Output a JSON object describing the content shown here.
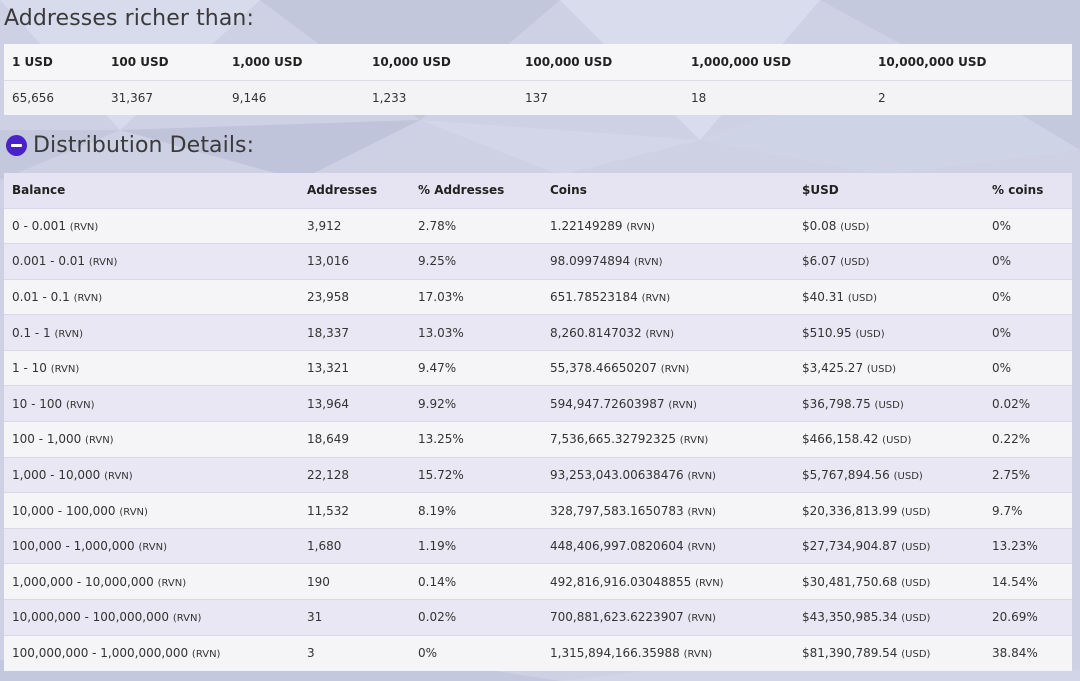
{
  "richer": {
    "title": "Addresses richer than:",
    "headers": [
      "1 USD",
      "100 USD",
      "1,000 USD",
      "10,000 USD",
      "100,000 USD",
      "1,000,000 USD",
      "10,000,000 USD"
    ],
    "values": [
      "65,656",
      "31,367",
      "9,146",
      "1,233",
      "137",
      "18",
      "2"
    ]
  },
  "distribution": {
    "title": "Distribution Details:",
    "toggle_icon": "minus-circle-icon",
    "accent_color": "#4a22c9",
    "headers": [
      "Balance",
      "Addresses",
      "% Addresses",
      "Coins",
      "$USD",
      "% coins"
    ],
    "rows": [
      {
        "balance": "0 - 0.001",
        "balance_unit": "(RVN)",
        "addresses": "3,912",
        "pct_addresses": "2.78%",
        "coins": "1.22149289",
        "coins_unit": "(RVN)",
        "usd": "$0.08",
        "usd_unit": "(USD)",
        "pct_coins": "0%"
      },
      {
        "balance": "0.001 - 0.01",
        "balance_unit": "(RVN)",
        "addresses": "13,016",
        "pct_addresses": "9.25%",
        "coins": "98.09974894",
        "coins_unit": "(RVN)",
        "usd": "$6.07",
        "usd_unit": "(USD)",
        "pct_coins": "0%"
      },
      {
        "balance": "0.01 - 0.1",
        "balance_unit": "(RVN)",
        "addresses": "23,958",
        "pct_addresses": "17.03%",
        "coins": "651.78523184",
        "coins_unit": "(RVN)",
        "usd": "$40.31",
        "usd_unit": "(USD)",
        "pct_coins": "0%"
      },
      {
        "balance": "0.1 - 1",
        "balance_unit": "(RVN)",
        "addresses": "18,337",
        "pct_addresses": "13.03%",
        "coins": "8,260.8147032",
        "coins_unit": "(RVN)",
        "usd": "$510.95",
        "usd_unit": "(USD)",
        "pct_coins": "0%"
      },
      {
        "balance": "1 - 10",
        "balance_unit": "(RVN)",
        "addresses": "13,321",
        "pct_addresses": "9.47%",
        "coins": "55,378.46650207",
        "coins_unit": "(RVN)",
        "usd": "$3,425.27",
        "usd_unit": "(USD)",
        "pct_coins": "0%"
      },
      {
        "balance": "10 - 100",
        "balance_unit": "(RVN)",
        "addresses": "13,964",
        "pct_addresses": "9.92%",
        "coins": "594,947.72603987",
        "coins_unit": "(RVN)",
        "usd": "$36,798.75",
        "usd_unit": "(USD)",
        "pct_coins": "0.02%"
      },
      {
        "balance": "100 - 1,000",
        "balance_unit": "(RVN)",
        "addresses": "18,649",
        "pct_addresses": "13.25%",
        "coins": "7,536,665.32792325",
        "coins_unit": "(RVN)",
        "usd": "$466,158.42",
        "usd_unit": "(USD)",
        "pct_coins": "0.22%"
      },
      {
        "balance": "1,000 - 10,000",
        "balance_unit": "(RVN)",
        "addresses": "22,128",
        "pct_addresses": "15.72%",
        "coins": "93,253,043.00638476",
        "coins_unit": "(RVN)",
        "usd": "$5,767,894.56",
        "usd_unit": "(USD)",
        "pct_coins": "2.75%"
      },
      {
        "balance": "10,000 - 100,000",
        "balance_unit": "(RVN)",
        "addresses": "11,532",
        "pct_addresses": "8.19%",
        "coins": "328,797,583.1650783",
        "coins_unit": "(RVN)",
        "usd": "$20,336,813.99",
        "usd_unit": "(USD)",
        "pct_coins": "9.7%"
      },
      {
        "balance": "100,000 - 1,000,000",
        "balance_unit": "(RVN)",
        "addresses": "1,680",
        "pct_addresses": "1.19%",
        "coins": "448,406,997.0820604",
        "coins_unit": "(RVN)",
        "usd": "$27,734,904.87",
        "usd_unit": "(USD)",
        "pct_coins": "13.23%"
      },
      {
        "balance": "1,000,000 - 10,000,000",
        "balance_unit": "(RVN)",
        "addresses": "190",
        "pct_addresses": "0.14%",
        "coins": "492,816,916.03048855",
        "coins_unit": "(RVN)",
        "usd": "$30,481,750.68",
        "usd_unit": "(USD)",
        "pct_coins": "14.54%"
      },
      {
        "balance": "10,000,000 - 100,000,000",
        "balance_unit": "(RVN)",
        "addresses": "31",
        "pct_addresses": "0.02%",
        "coins": "700,881,623.6223907",
        "coins_unit": "(RVN)",
        "usd": "$43,350,985.34",
        "usd_unit": "(USD)",
        "pct_coins": "20.69%"
      },
      {
        "balance": "100,000,000 - 1,000,000,000",
        "balance_unit": "(RVN)",
        "addresses": "3",
        "pct_addresses": "0%",
        "coins": "1,315,894,166.35988",
        "coins_unit": "(RVN)",
        "usd": "$81,390,789.54",
        "usd_unit": "(USD)",
        "pct_coins": "38.84%"
      }
    ]
  }
}
